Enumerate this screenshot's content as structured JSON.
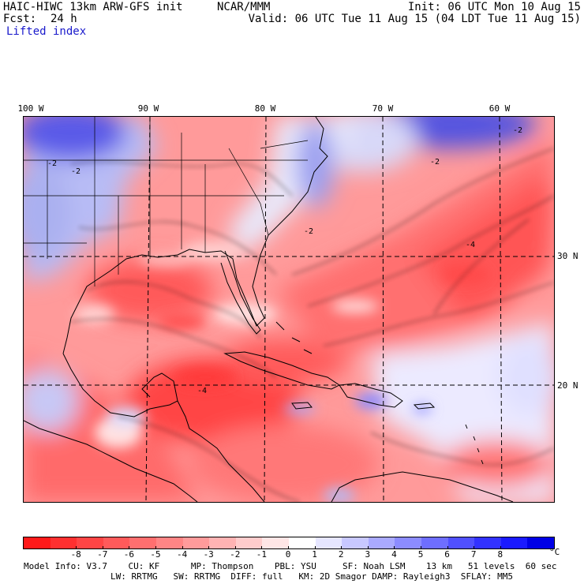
{
  "header": {
    "model_line": "HAIC-HIWC 13km ARW-GFS init",
    "org": "NCAR/MMM",
    "fcst_label": "Fcst:",
    "fcst_value": "24 h",
    "field": "Lifted index",
    "init": "Init: 06 UTC Mon 10 Aug 15",
    "valid": "Valid: 06 UTC Tue 11 Aug 15 (04 LDT Tue 11 Aug 15)"
  },
  "map": {
    "lon_labels": [
      "100 W",
      "90 W",
      "80 W",
      "70 W",
      "60 W"
    ],
    "lat_labels": [
      "30 N",
      "20 N"
    ],
    "contour_labels": [
      "-2",
      "-2",
      "-2",
      "-2",
      "-2",
      "-4",
      "-4"
    ]
  },
  "colorbar": {
    "labels": [
      "-8",
      "-7",
      "-6",
      "-5",
      "-4",
      "-3",
      "-2",
      "-1",
      "0",
      "1",
      "2",
      "3",
      "4",
      "5",
      "6",
      "7",
      "8"
    ],
    "unit": "°C",
    "colors": [
      "#ff1a1a",
      "#ff3030",
      "#ff4545",
      "#ff5a5a",
      "#ff6f6f",
      "#ff8585",
      "#ff9b9b",
      "#ffb3b3",
      "#ffcccc",
      "#ffe6e6",
      "#ffffff",
      "#e6e6ff",
      "#c8c8ff",
      "#aaaaff",
      "#8c8cff",
      "#6e6eff",
      "#5050ff",
      "#3232ff",
      "#1a1aff",
      "#0000e6"
    ]
  },
  "footer": {
    "line1": "Model Info: V3.7    CU: KF      MP: Thompson    PBL: YSU     SF: Noah LSM    13 km   51 levels  60 sec",
    "line2": "LW: RRTMG   SW: RRTMG  DIFF: full   KM: 2D Smagor DAMP: Rayleigh3  SFLAY: MM5"
  }
}
